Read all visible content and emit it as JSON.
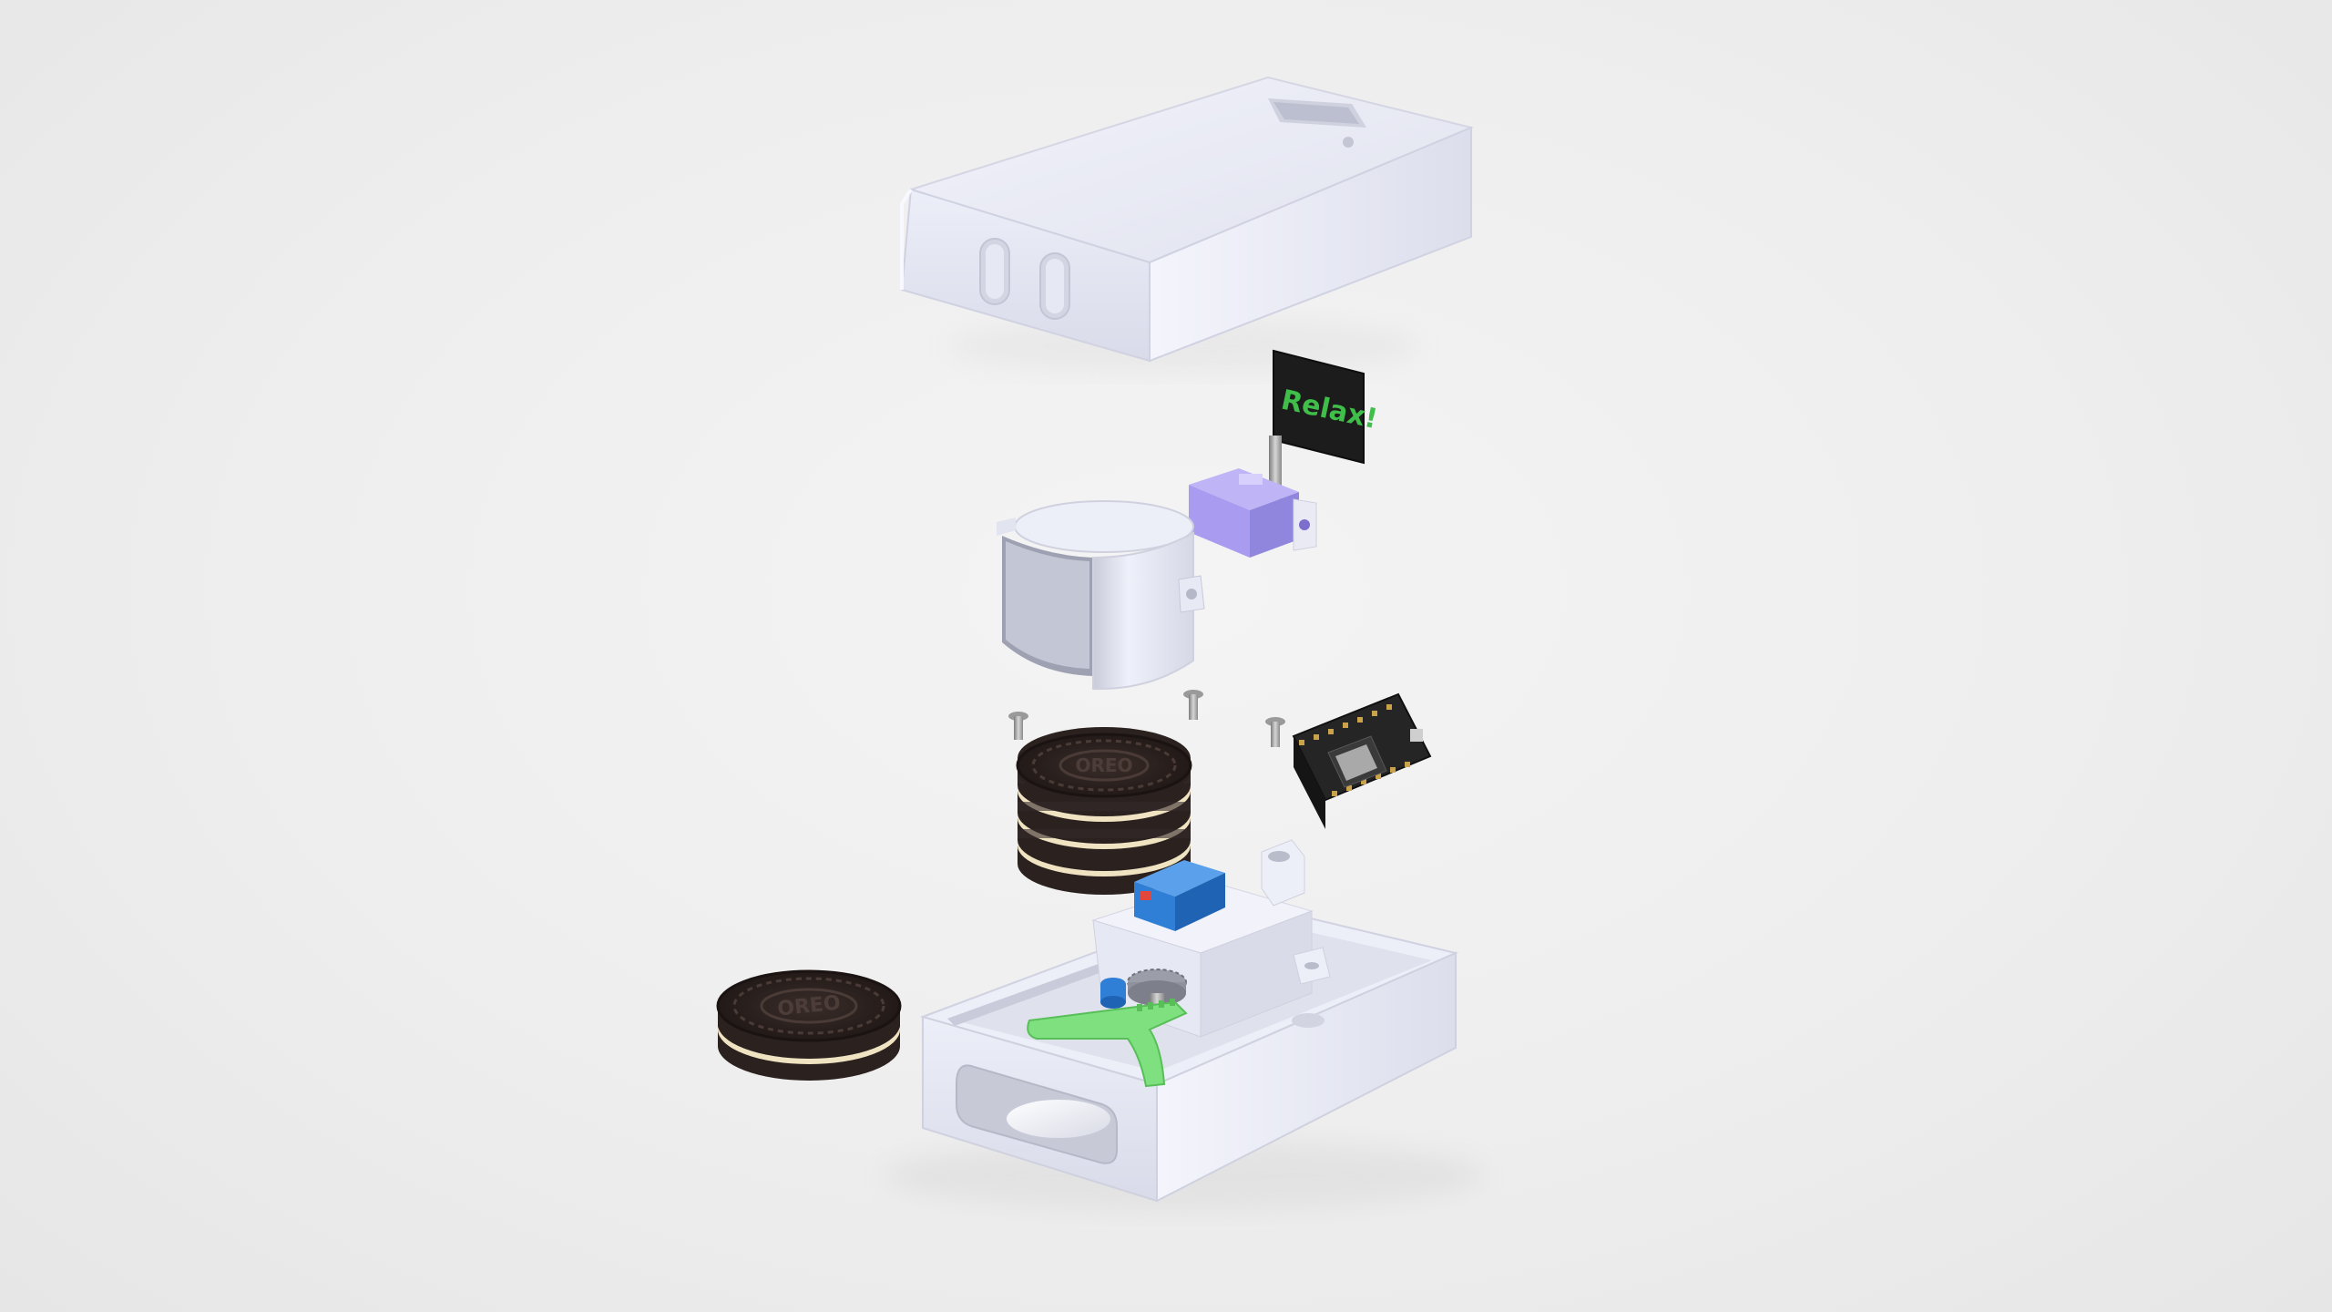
{
  "sign": {
    "text": "Relax!",
    "text_color": "#3fbf4a",
    "board_color": "#1c1c1c"
  },
  "cookie_emboss": "OREO",
  "colors": {
    "background": "#ececec",
    "enclosure": "#e8e9f3",
    "servo": "#a99cf0",
    "motor": "#2f7fd6",
    "gear_arm": "#7ee07e",
    "pcb": "#1e1e1e",
    "cookie_dark": "#2b2220",
    "cookie_cream": "#efe3c2"
  }
}
